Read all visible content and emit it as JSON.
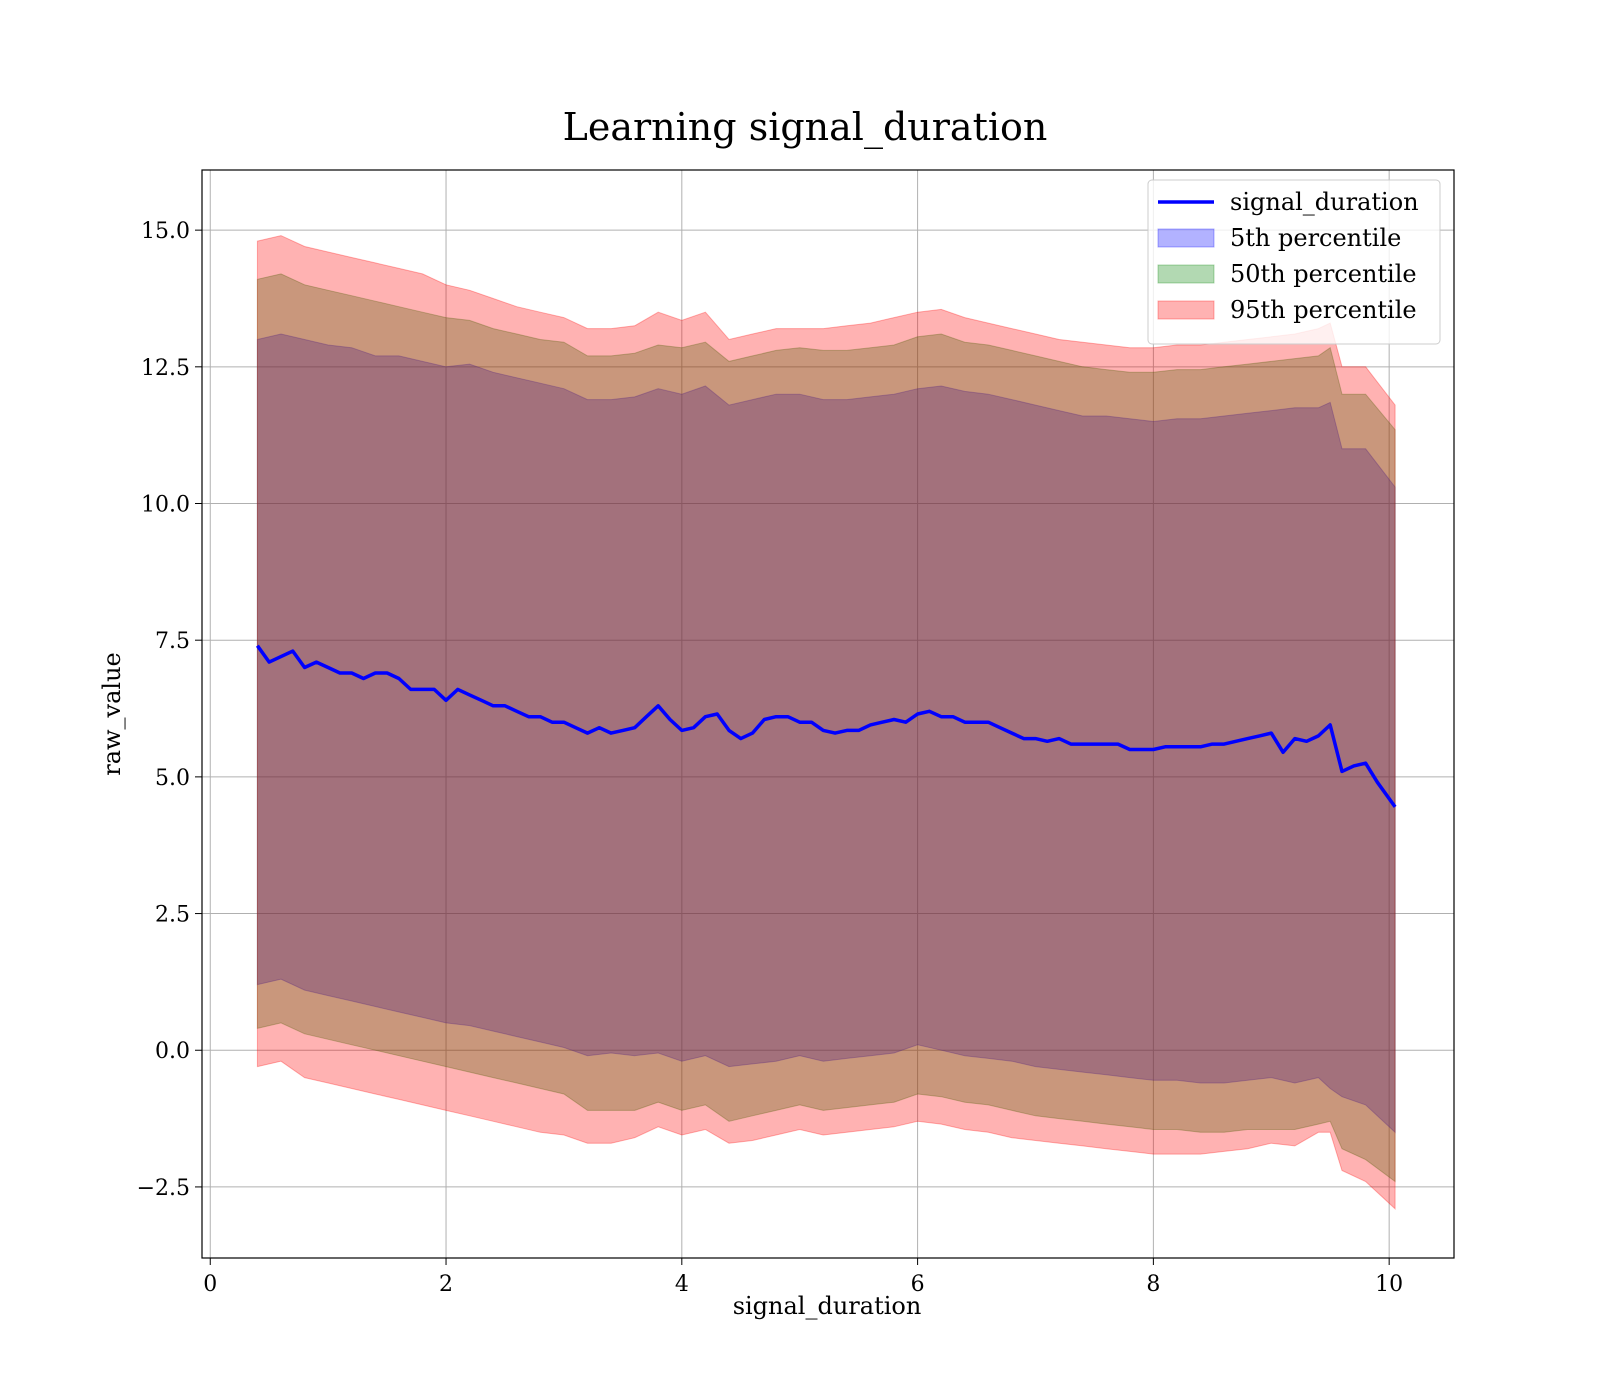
{
  "chart_data": {
    "type": "line",
    "title": "Learning signal_duration",
    "xlabel": "signal_duration",
    "ylabel": "raw_value",
    "xlim": [
      -0.07,
      10.55
    ],
    "ylim": [
      -3.8,
      16.1
    ],
    "xticks": [
      0,
      2,
      4,
      6,
      8,
      10
    ],
    "xtick_labels": [
      "0",
      "2",
      "4",
      "6",
      "8",
      "10"
    ],
    "yticks": [
      -2.5,
      0.0,
      2.5,
      5.0,
      7.5,
      10.0,
      12.5,
      15.0
    ],
    "ytick_labels": [
      "−2.5",
      "0.0",
      "2.5",
      "5.0",
      "7.5",
      "10.0",
      "12.5",
      "15.0"
    ],
    "grid": true,
    "legend_position": "top-right",
    "series": [
      {
        "name": "signal_duration",
        "kind": "line",
        "color": "#0000ff",
        "x": [
          0.4,
          0.5,
          0.6,
          0.7,
          0.8,
          0.9,
          1.0,
          1.1,
          1.2,
          1.3,
          1.4,
          1.5,
          1.6,
          1.7,
          1.8,
          1.9,
          2.0,
          2.1,
          2.2,
          2.3,
          2.4,
          2.5,
          2.6,
          2.7,
          2.8,
          2.9,
          3.0,
          3.1,
          3.2,
          3.3,
          3.4,
          3.5,
          3.6,
          3.7,
          3.8,
          3.9,
          4.0,
          4.1,
          4.2,
          4.3,
          4.4,
          4.5,
          4.6,
          4.7,
          4.8,
          4.9,
          5.0,
          5.1,
          5.2,
          5.3,
          5.4,
          5.5,
          5.6,
          5.7,
          5.8,
          5.9,
          6.0,
          6.1,
          6.2,
          6.3,
          6.4,
          6.5,
          6.6,
          6.7,
          6.8,
          6.9,
          7.0,
          7.1,
          7.2,
          7.3,
          7.4,
          7.5,
          7.6,
          7.7,
          7.8,
          7.9,
          8.0,
          8.1,
          8.2,
          8.3,
          8.4,
          8.5,
          8.6,
          8.7,
          8.8,
          8.9,
          9.0,
          9.1,
          9.2,
          9.3,
          9.4,
          9.5,
          9.6,
          9.7,
          9.8,
          9.9,
          10.05
        ],
        "y": [
          7.4,
          7.1,
          7.2,
          7.3,
          7.0,
          7.1,
          7.0,
          6.9,
          6.9,
          6.8,
          6.9,
          6.9,
          6.8,
          6.6,
          6.6,
          6.6,
          6.4,
          6.6,
          6.5,
          6.4,
          6.3,
          6.3,
          6.2,
          6.1,
          6.1,
          6.0,
          6.0,
          5.9,
          5.8,
          5.9,
          5.8,
          5.85,
          5.9,
          6.1,
          6.3,
          6.05,
          5.85,
          5.9,
          6.1,
          6.15,
          5.85,
          5.7,
          5.8,
          6.05,
          6.1,
          6.1,
          6.0,
          6.0,
          5.85,
          5.8,
          5.85,
          5.85,
          5.95,
          6.0,
          6.05,
          6.0,
          6.15,
          6.2,
          6.1,
          6.1,
          6.0,
          6.0,
          6.0,
          5.9,
          5.8,
          5.7,
          5.7,
          5.65,
          5.7,
          5.6,
          5.6,
          5.6,
          5.6,
          5.6,
          5.5,
          5.5,
          5.5,
          5.55,
          5.55,
          5.55,
          5.55,
          5.6,
          5.6,
          5.65,
          5.7,
          5.75,
          5.8,
          5.45,
          5.7,
          5.65,
          5.75,
          5.95,
          5.1,
          5.2,
          5.25,
          4.9,
          4.45
        ]
      },
      {
        "name": "5th percentile",
        "kind": "band",
        "color": "#0000ff",
        "alpha": 0.3,
        "x": [
          0.4,
          0.6,
          0.8,
          1.0,
          1.2,
          1.4,
          1.6,
          1.8,
          2.0,
          2.2,
          2.4,
          2.6,
          2.8,
          3.0,
          3.2,
          3.4,
          3.6,
          3.8,
          4.0,
          4.2,
          4.4,
          4.6,
          4.8,
          5.0,
          5.2,
          5.4,
          5.6,
          5.8,
          6.0,
          6.2,
          6.4,
          6.6,
          6.8,
          7.0,
          7.2,
          7.4,
          7.6,
          7.8,
          8.0,
          8.2,
          8.4,
          8.6,
          8.8,
          9.0,
          9.2,
          9.4,
          9.5,
          9.6,
          9.8,
          10.05
        ],
        "lower": [
          1.2,
          1.3,
          1.1,
          1.0,
          0.9,
          0.8,
          0.7,
          0.6,
          0.5,
          0.45,
          0.35,
          0.25,
          0.15,
          0.05,
          -0.1,
          -0.05,
          -0.1,
          -0.05,
          -0.2,
          -0.1,
          -0.3,
          -0.25,
          -0.2,
          -0.1,
          -0.2,
          -0.15,
          -0.1,
          -0.05,
          0.1,
          0.0,
          -0.1,
          -0.15,
          -0.2,
          -0.3,
          -0.35,
          -0.4,
          -0.45,
          -0.5,
          -0.55,
          -0.55,
          -0.6,
          -0.6,
          -0.55,
          -0.5,
          -0.6,
          -0.5,
          -0.7,
          -0.85,
          -1.0,
          -1.5
        ],
        "upper": [
          13.0,
          13.1,
          13.0,
          12.9,
          12.85,
          12.7,
          12.7,
          12.6,
          12.5,
          12.55,
          12.4,
          12.3,
          12.2,
          12.1,
          11.9,
          11.9,
          11.95,
          12.1,
          12.0,
          12.15,
          11.8,
          11.9,
          12.0,
          12.0,
          11.9,
          11.9,
          11.95,
          12.0,
          12.1,
          12.15,
          12.05,
          12.0,
          11.9,
          11.8,
          11.7,
          11.6,
          11.6,
          11.55,
          11.5,
          11.55,
          11.55,
          11.6,
          11.65,
          11.7,
          11.75,
          11.75,
          11.85,
          11.0,
          11.0,
          10.3
        ]
      },
      {
        "name": "50th percentile",
        "kind": "band",
        "color": "#008000",
        "alpha": 0.3,
        "x": [
          0.4,
          0.6,
          0.8,
          1.0,
          1.2,
          1.4,
          1.6,
          1.8,
          2.0,
          2.2,
          2.4,
          2.6,
          2.8,
          3.0,
          3.2,
          3.4,
          3.6,
          3.8,
          4.0,
          4.2,
          4.4,
          4.6,
          4.8,
          5.0,
          5.2,
          5.4,
          5.6,
          5.8,
          6.0,
          6.2,
          6.4,
          6.6,
          6.8,
          7.0,
          7.2,
          7.4,
          7.6,
          7.8,
          8.0,
          8.2,
          8.4,
          8.6,
          8.8,
          9.0,
          9.2,
          9.4,
          9.5,
          9.6,
          9.8,
          10.05
        ],
        "lower": [
          0.4,
          0.5,
          0.3,
          0.2,
          0.1,
          0.0,
          -0.1,
          -0.2,
          -0.3,
          -0.4,
          -0.5,
          -0.6,
          -0.7,
          -0.8,
          -1.1,
          -1.1,
          -1.1,
          -0.95,
          -1.1,
          -1.0,
          -1.3,
          -1.2,
          -1.1,
          -1.0,
          -1.1,
          -1.05,
          -1.0,
          -0.95,
          -0.8,
          -0.85,
          -0.95,
          -1.0,
          -1.1,
          -1.2,
          -1.25,
          -1.3,
          -1.35,
          -1.4,
          -1.45,
          -1.45,
          -1.5,
          -1.5,
          -1.45,
          -1.45,
          -1.45,
          -1.35,
          -1.3,
          -1.8,
          -2.0,
          -2.4
        ],
        "upper": [
          14.1,
          14.2,
          14.0,
          13.9,
          13.8,
          13.7,
          13.6,
          13.5,
          13.4,
          13.35,
          13.2,
          13.1,
          13.0,
          12.95,
          12.7,
          12.7,
          12.75,
          12.9,
          12.85,
          12.95,
          12.6,
          12.7,
          12.8,
          12.85,
          12.8,
          12.8,
          12.85,
          12.9,
          13.05,
          13.1,
          12.95,
          12.9,
          12.8,
          12.7,
          12.6,
          12.5,
          12.45,
          12.4,
          12.4,
          12.45,
          12.45,
          12.5,
          12.55,
          12.6,
          12.65,
          12.7,
          12.85,
          12.0,
          12.0,
          11.35
        ]
      },
      {
        "name": "95th percentile",
        "kind": "band",
        "color": "#ff0000",
        "alpha": 0.3,
        "x": [
          0.4,
          0.6,
          0.8,
          1.0,
          1.2,
          1.4,
          1.6,
          1.8,
          2.0,
          2.2,
          2.4,
          2.6,
          2.8,
          3.0,
          3.2,
          3.4,
          3.6,
          3.8,
          4.0,
          4.2,
          4.4,
          4.6,
          4.8,
          5.0,
          5.2,
          5.4,
          5.6,
          5.8,
          6.0,
          6.2,
          6.4,
          6.6,
          6.8,
          7.0,
          7.2,
          7.4,
          7.6,
          7.8,
          8.0,
          8.2,
          8.4,
          8.6,
          8.8,
          9.0,
          9.2,
          9.4,
          9.5,
          9.6,
          9.8,
          10.05
        ],
        "lower": [
          -0.3,
          -0.2,
          -0.5,
          -0.6,
          -0.7,
          -0.8,
          -0.9,
          -1.0,
          -1.1,
          -1.2,
          -1.3,
          -1.4,
          -1.5,
          -1.55,
          -1.7,
          -1.7,
          -1.6,
          -1.4,
          -1.55,
          -1.45,
          -1.7,
          -1.65,
          -1.55,
          -1.45,
          -1.55,
          -1.5,
          -1.45,
          -1.4,
          -1.3,
          -1.35,
          -1.45,
          -1.5,
          -1.6,
          -1.65,
          -1.7,
          -1.75,
          -1.8,
          -1.85,
          -1.9,
          -1.9,
          -1.9,
          -1.85,
          -1.8,
          -1.7,
          -1.75,
          -1.5,
          -1.5,
          -2.2,
          -2.4,
          -2.9
        ],
        "upper": [
          14.8,
          14.9,
          14.7,
          14.6,
          14.5,
          14.4,
          14.3,
          14.2,
          14.0,
          13.9,
          13.75,
          13.6,
          13.5,
          13.4,
          13.2,
          13.2,
          13.25,
          13.5,
          13.35,
          13.5,
          13.0,
          13.1,
          13.2,
          13.2,
          13.2,
          13.25,
          13.3,
          13.4,
          13.5,
          13.55,
          13.4,
          13.3,
          13.2,
          13.1,
          13.0,
          12.95,
          12.9,
          12.85,
          12.85,
          12.9,
          12.9,
          12.95,
          13.0,
          13.05,
          13.1,
          13.2,
          13.3,
          12.5,
          12.5,
          11.8
        ]
      }
    ]
  }
}
